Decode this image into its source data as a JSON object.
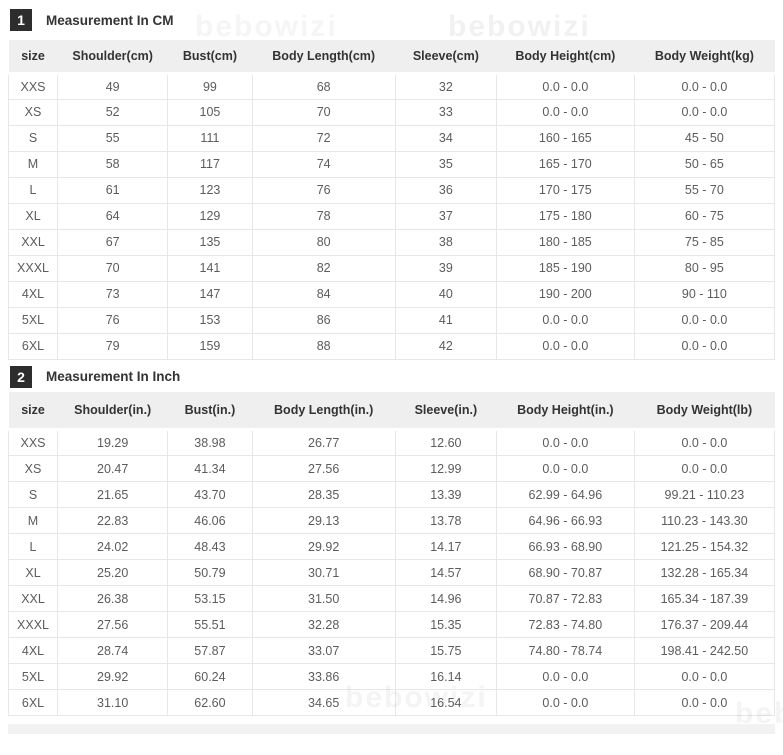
{
  "watermark": "bebowizi",
  "sections": [
    {
      "badge": "1",
      "title": "Measurement In CM",
      "columns": [
        "size",
        "Shoulder(cm)",
        "Bust(cm)",
        "Body Length(cm)",
        "Sleeve(cm)",
        "Body Height(cm)",
        "Body Weight(kg)"
      ],
      "rows": [
        [
          "XXS",
          "49",
          "99",
          "68",
          "32",
          "0.0 - 0.0",
          "0.0 - 0.0"
        ],
        [
          "XS",
          "52",
          "105",
          "70",
          "33",
          "0.0 - 0.0",
          "0.0 - 0.0"
        ],
        [
          "S",
          "55",
          "111",
          "72",
          "34",
          "160 - 165",
          "45 - 50"
        ],
        [
          "M",
          "58",
          "117",
          "74",
          "35",
          "165 - 170",
          "50 - 65"
        ],
        [
          "L",
          "61",
          "123",
          "76",
          "36",
          "170 - 175",
          "55 - 70"
        ],
        [
          "XL",
          "64",
          "129",
          "78",
          "37",
          "175 - 180",
          "60 - 75"
        ],
        [
          "XXL",
          "67",
          "135",
          "80",
          "38",
          "180 - 185",
          "75 - 85"
        ],
        [
          "XXXL",
          "70",
          "141",
          "82",
          "39",
          "185 - 190",
          "80 - 95"
        ],
        [
          "4XL",
          "73",
          "147",
          "84",
          "40",
          "190 - 200",
          "90 - 110"
        ],
        [
          "5XL",
          "76",
          "153",
          "86",
          "41",
          "0.0 - 0.0",
          "0.0 - 0.0"
        ],
        [
          "6XL",
          "79",
          "159",
          "88",
          "42",
          "0.0 - 0.0",
          "0.0 - 0.0"
        ]
      ]
    },
    {
      "badge": "2",
      "title": "Measurement In Inch",
      "columns": [
        "size",
        "Shoulder(in.)",
        "Bust(in.)",
        "Body Length(in.)",
        "Sleeve(in.)",
        "Body Height(in.)",
        "Body Weight(lb)"
      ],
      "rows": [
        [
          "XXS",
          "19.29",
          "38.98",
          "26.77",
          "12.60",
          "0.0 - 0.0",
          "0.0 - 0.0"
        ],
        [
          "XS",
          "20.47",
          "41.34",
          "27.56",
          "12.99",
          "0.0 - 0.0",
          "0.0 - 0.0"
        ],
        [
          "S",
          "21.65",
          "43.70",
          "28.35",
          "13.39",
          "62.99 - 64.96",
          "99.21 - 110.23"
        ],
        [
          "M",
          "22.83",
          "46.06",
          "29.13",
          "13.78",
          "64.96 - 66.93",
          "110.23 - 143.30"
        ],
        [
          "L",
          "24.02",
          "48.43",
          "29.92",
          "14.17",
          "66.93 - 68.90",
          "121.25 - 154.32"
        ],
        [
          "XL",
          "25.20",
          "50.79",
          "30.71",
          "14.57",
          "68.90 - 70.87",
          "132.28 - 165.34"
        ],
        [
          "XXL",
          "26.38",
          "53.15",
          "31.50",
          "14.96",
          "70.87 - 72.83",
          "165.34 - 187.39"
        ],
        [
          "XXXL",
          "27.56",
          "55.51",
          "32.28",
          "15.35",
          "72.83 - 74.80",
          "176.37 - 209.44"
        ],
        [
          "4XL",
          "28.74",
          "57.87",
          "33.07",
          "15.75",
          "74.80 - 78.74",
          "198.41 - 242.50"
        ],
        [
          "5XL",
          "29.92",
          "60.24",
          "33.86",
          "16.14",
          "0.0 - 0.0",
          "0.0 - 0.0"
        ],
        [
          "6XL",
          "31.10",
          "62.60",
          "34.65",
          "16.54",
          "0.0 - 0.0",
          "0.0 - 0.0"
        ]
      ]
    }
  ],
  "colors": {
    "badge_background": "#2d2d2d",
    "header_row_background": "#efefef",
    "border": "#e7e7e7",
    "header_text": "#333333",
    "cell_text": "#5c5c5c"
  }
}
